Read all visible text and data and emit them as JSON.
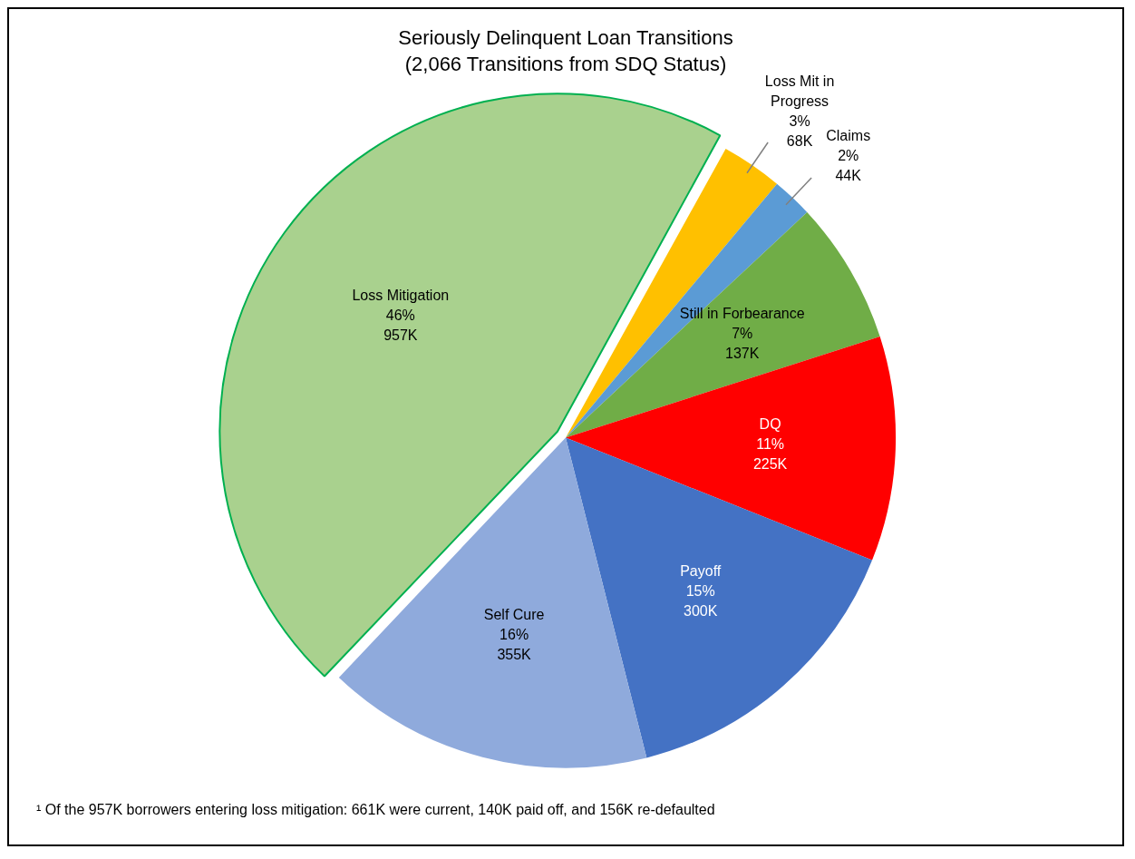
{
  "chart_data": {
    "type": "pie",
    "title": "Seriously Delinquent Loan Transitions",
    "subtitle": "(2,066 Transitions from SDQ Status)",
    "categories": [
      "Loss Mit in Progress",
      "Claims",
      "Still in Forbearance",
      "DQ",
      "Payoff",
      "Self Cure",
      "Loss Mitigation"
    ],
    "values": [
      3,
      2,
      7,
      11,
      15,
      16,
      46
    ],
    "value_labels": [
      "3%\n68K",
      "2%\n44K",
      "7%\n137K",
      "11%\n225K",
      "15%\n300K",
      "16%\n355K",
      "46%\n957K"
    ],
    "colors": [
      "#ffc000",
      "#5b9bd5",
      "#70ad47",
      "#ff0000",
      "#4472c4",
      "#8faadc",
      "#a9d18e"
    ],
    "annotations": [
      "¹ Of the 957K borrowers entering loss mitigation: 661K were current, 140K paid off, and 156K re-defaulted"
    ],
    "legend": false
  }
}
